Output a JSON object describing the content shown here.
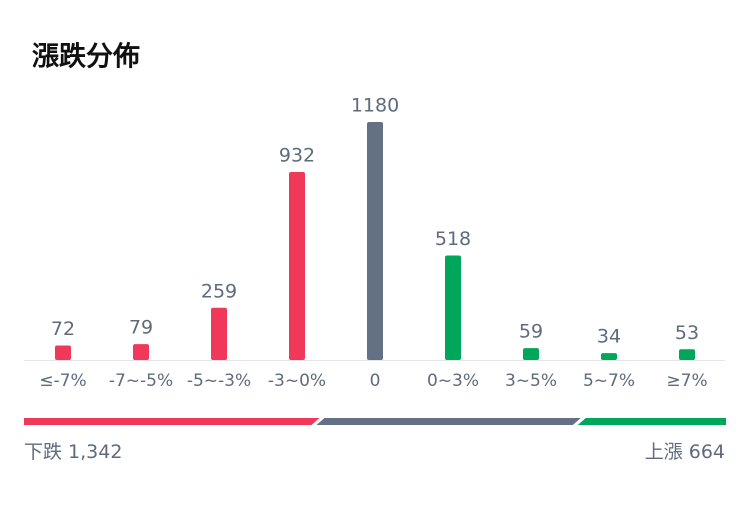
{
  "chart_data": {
    "type": "bar",
    "title": "漲跌分佈",
    "categories": [
      "≤-7%",
      "-7~-5%",
      "-5~-3%",
      "-3~0%",
      "0",
      "0~3%",
      "3~5%",
      "5~7%",
      "≥7%"
    ],
    "values": [
      72,
      79,
      259,
      932,
      1180,
      518,
      59,
      34,
      53
    ],
    "colors": [
      "#f0385a",
      "#f0385a",
      "#f0385a",
      "#f0385a",
      "#647185",
      "#00a65a",
      "#00a65a",
      "#00a65a",
      "#00a65a"
    ],
    "summary": {
      "down_label": "下跌",
      "down": {
        "value": 1342,
        "label": "1,342"
      },
      "up_label": "上漲",
      "up": 664
    }
  }
}
